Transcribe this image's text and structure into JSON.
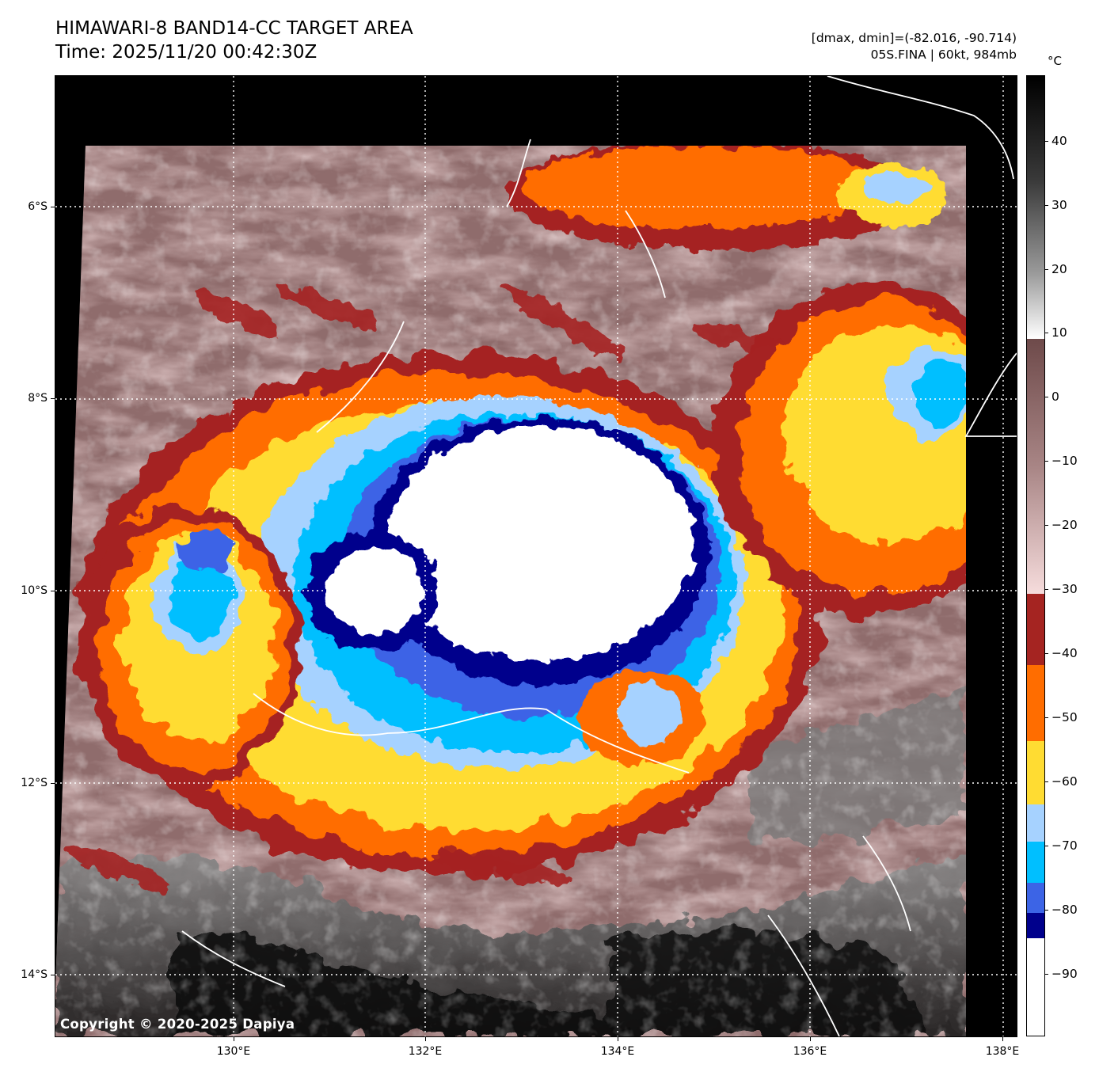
{
  "header": {
    "title": "HIMAWARI-8 BAND14-CC TARGET AREA",
    "time": "Time: 2025/11/20 00:42:30Z",
    "range": "[dmax, dmin]=(-82.016, -90.714)",
    "storm": "05S.FINA | 60kt, 984mb"
  },
  "map": {
    "copyright": "Copyright © 2020-2025 Dapiya",
    "lat_labels": [
      "6°S",
      "8°S",
      "10°S",
      "12°S",
      "14°S"
    ],
    "lon_labels": [
      "130°E",
      "132°E",
      "134°E",
      "136°E",
      "138°E"
    ]
  },
  "colorbar": {
    "unit": "°C",
    "labels": [
      "40",
      "30",
      "20",
      "10",
      "0",
      "−10",
      "−20",
      "−30",
      "−40",
      "−50",
      "−60",
      "−70",
      "−80",
      "−90"
    ],
    "colors": {
      "gray_warm": "#000000",
      "gray_cool": "#ffffff",
      "brown": "#6e4a4a",
      "pink": "#f6dcdc",
      "dark_red": "#a52421",
      "orange": "#ff6d00",
      "yellow": "#ffdc32",
      "light_blue": "#a6d2ff",
      "sky_blue": "#00bfff",
      "royal_blue": "#3c64e6",
      "navy": "#00008c",
      "white": "#ffffff"
    }
  }
}
